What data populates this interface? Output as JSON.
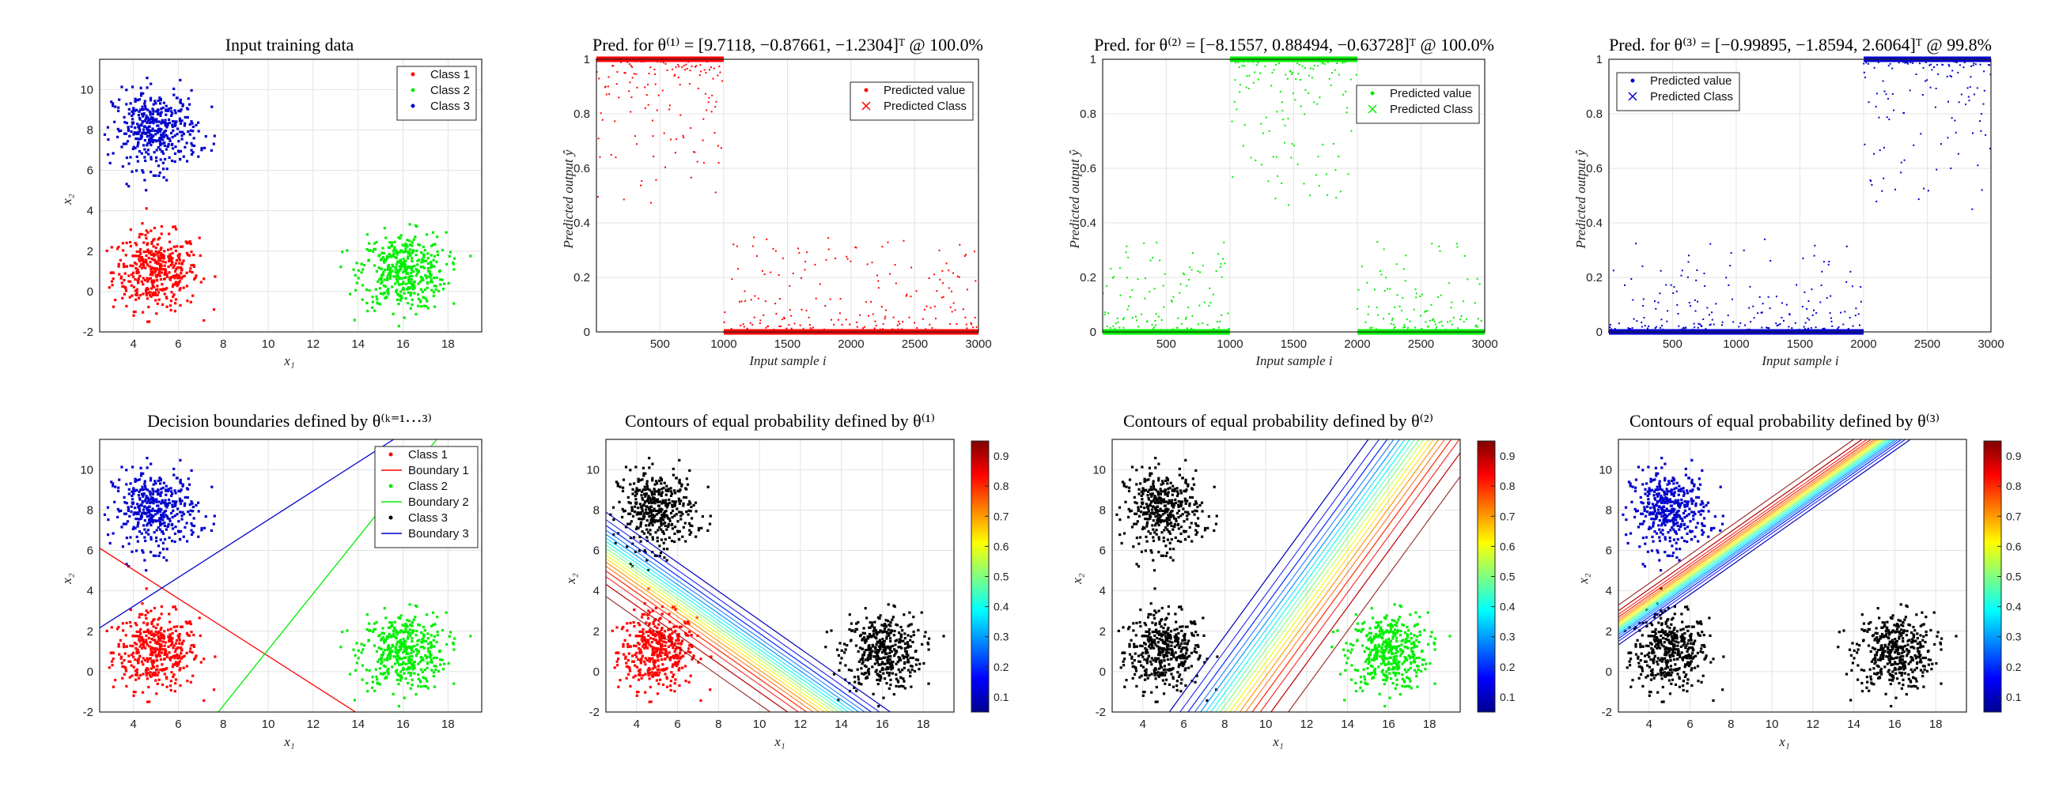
{
  "figure": {
    "panels": [
      {
        "id": "p1",
        "title": "Input training data",
        "xlabel": "x₁",
        "ylabel": "x₂",
        "xticks": [
          "4",
          "6",
          "8",
          "10",
          "12",
          "14",
          "16",
          "18"
        ],
        "yticks": [
          "-2",
          "0",
          "2",
          "4",
          "6",
          "8",
          "10"
        ],
        "legend": [
          "Class 1",
          "Class 2",
          "Class 3"
        ]
      },
      {
        "id": "p2",
        "title": "Pred. for θ⁽¹⁾ = [9.7118, −0.87661, −1.2304]ᵀ @ 100.0%",
        "xlabel": "Input sample i",
        "ylabel": "Predicted output ŷ",
        "xticks": [
          "500",
          "1000",
          "1500",
          "2000",
          "2500",
          "3000"
        ],
        "yticks": [
          "0",
          "0.2",
          "0.4",
          "0.6",
          "0.8",
          "1"
        ],
        "legend": [
          "Predicted value",
          "Predicted Class"
        ]
      },
      {
        "id": "p3",
        "title": "Pred. for θ⁽²⁾ = [−8.1557, 0.88494, −0.63728]ᵀ @ 100.0%",
        "xlabel": "Input sample i",
        "ylabel": "Predicted output ŷ",
        "xticks": [
          "500",
          "1000",
          "1500",
          "2000",
          "2500",
          "3000"
        ],
        "yticks": [
          "0",
          "0.2",
          "0.4",
          "0.6",
          "0.8",
          "1"
        ],
        "legend": [
          "Predicted value",
          "Predicted Class"
        ]
      },
      {
        "id": "p4",
        "title": "Pred. for θ⁽³⁾ = [−0.99895, −1.8594, 2.6064]ᵀ @ 99.8%",
        "xlabel": "Input sample i",
        "ylabel": "Predicted output ŷ",
        "xticks": [
          "500",
          "1000",
          "1500",
          "2000",
          "2500",
          "3000"
        ],
        "yticks": [
          "0",
          "0.2",
          "0.4",
          "0.6",
          "0.8",
          "1"
        ],
        "legend": [
          "Predicted value",
          "Predicted Class"
        ]
      },
      {
        "id": "p5",
        "title": "Decision boundaries defined by θ⁽ᵏ⁼¹···³⁾",
        "xlabel": "x₁",
        "ylabel": "x₂",
        "xticks": [
          "4",
          "6",
          "8",
          "10",
          "12",
          "14",
          "16",
          "18"
        ],
        "yticks": [
          "-2",
          "0",
          "2",
          "4",
          "6",
          "8",
          "10"
        ],
        "legend": [
          "Class 1",
          "Boundary 1",
          "Class 2",
          "Boundary 2",
          "Class 3",
          "Boundary 3"
        ]
      },
      {
        "id": "p6",
        "title": "Contours of equal probability defined by θ⁽¹⁾",
        "xlabel": "x₁",
        "ylabel": "x₂",
        "xticks": [
          "4",
          "6",
          "8",
          "10",
          "12",
          "14",
          "16",
          "18"
        ],
        "yticks": [
          "-2",
          "0",
          "2",
          "4",
          "6",
          "8",
          "10"
        ]
      },
      {
        "id": "p7",
        "title": "Contours of equal probability defined by θ⁽²⁾",
        "xlabel": "x₁",
        "ylabel": "x₂",
        "xticks": [
          "4",
          "6",
          "8",
          "10",
          "12",
          "14",
          "16",
          "18"
        ],
        "yticks": [
          "-2",
          "0",
          "2",
          "4",
          "6",
          "8",
          "10"
        ]
      },
      {
        "id": "p8",
        "title": "Contours of equal probability defined by θ⁽³⁾",
        "xlabel": "x₁",
        "ylabel": "x₂",
        "xticks": [
          "4",
          "6",
          "8",
          "10",
          "12",
          "14",
          "16",
          "18"
        ],
        "yticks": [
          "-2",
          "0",
          "2",
          "4",
          "6",
          "8",
          "10"
        ]
      }
    ],
    "colorbar_ticks": [
      "0.1",
      "0.2",
      "0.3",
      "0.4",
      "0.5",
      "0.6",
      "0.7",
      "0.8",
      "0.9"
    ]
  },
  "colors": {
    "class1": "#ff0000",
    "class2": "#00ee00",
    "class3": "#0000cc",
    "other": "#000000"
  },
  "chart_data": [
    {
      "type": "scatter",
      "title": "Input training data",
      "xlabel": "x₁",
      "ylabel": "x₂",
      "xlim": [
        2.5,
        19.5
      ],
      "ylim": [
        -2,
        11.5
      ],
      "legend_position": "top-right",
      "series": [
        {
          "name": "Class 1",
          "center": [
            5,
            1
          ],
          "spread": 1,
          "count": 1000
        },
        {
          "name": "Class 2",
          "center": [
            16,
            1
          ],
          "spread": 1,
          "count": 1000
        },
        {
          "name": "Class 3",
          "center": [
            5,
            8
          ],
          "spread": 1,
          "count": 1000
        }
      ]
    },
    {
      "type": "scatter",
      "title": "Pred. for θ(1) = [9.7118, −0.87661, −1.2304]T @ 100.0%",
      "xlabel": "Input sample i",
      "ylabel": "Predicted output ŷ",
      "xlim": [
        1,
        3000
      ],
      "ylim": [
        0,
        1
      ],
      "legend_position": "top-right",
      "theta": [
        9.7118,
        -0.87661,
        -1.2304
      ],
      "accuracy": "100.0%",
      "segments": [
        {
          "range": [
            1,
            1000
          ],
          "level": "high"
        },
        {
          "range": [
            1001,
            3000
          ],
          "level": "low"
        }
      ]
    },
    {
      "type": "scatter",
      "title": "Pred. for θ(2) = [−8.1557, 0.88494, −0.63728]T @ 100.0%",
      "xlabel": "Input sample i",
      "ylabel": "Predicted output ŷ",
      "xlim": [
        1,
        3000
      ],
      "ylim": [
        0,
        1
      ],
      "legend_position": "top-right",
      "theta": [
        -8.1557,
        0.88494,
        -0.63728
      ],
      "accuracy": "100.0%",
      "segments": [
        {
          "range": [
            1,
            1000
          ],
          "level": "low"
        },
        {
          "range": [
            1001,
            2000
          ],
          "level": "high"
        },
        {
          "range": [
            2001,
            3000
          ],
          "level": "low"
        }
      ]
    },
    {
      "type": "scatter",
      "title": "Pred. for θ(3) = [−0.99895, −1.8594, 2.6064]T @ 99.8%",
      "xlabel": "Input sample i",
      "ylabel": "Predicted output ŷ",
      "xlim": [
        1,
        3000
      ],
      "ylim": [
        0,
        1
      ],
      "legend_position": "top-left",
      "theta": [
        -0.99895,
        -1.8594,
        2.6064
      ],
      "accuracy": "99.8%",
      "segments": [
        {
          "range": [
            1,
            2000
          ],
          "level": "low"
        },
        {
          "range": [
            2001,
            3000
          ],
          "level": "high"
        }
      ]
    },
    {
      "type": "scatter",
      "title": "Decision boundaries defined by θ(k=1...3)",
      "xlabel": "x₁",
      "ylabel": "x₂",
      "xlim": [
        2.5,
        19.5
      ],
      "ylim": [
        -2,
        11.5
      ],
      "legend_position": "top-right",
      "boundaries": [
        {
          "name": "Boundary 1",
          "theta": [
            9.7118,
            -0.87661,
            -1.2304
          ]
        },
        {
          "name": "Boundary 2",
          "theta": [
            -8.1557,
            0.88494,
            -0.63728
          ]
        },
        {
          "name": "Boundary 3",
          "theta": [
            -0.99895,
            -1.8594,
            2.6064
          ]
        }
      ]
    },
    {
      "type": "contour",
      "title": "Contours of equal probability defined by θ(1)",
      "xlim": [
        2.5,
        19.5
      ],
      "ylim": [
        -2,
        11.5
      ],
      "levels": [
        0.1,
        0.2,
        0.3,
        0.4,
        0.5,
        0.6,
        0.7,
        0.8,
        0.9
      ],
      "highlight_class": "Class 1"
    },
    {
      "type": "contour",
      "title": "Contours of equal probability defined by θ(2)",
      "xlim": [
        2.5,
        19.5
      ],
      "ylim": [
        -2,
        11.5
      ],
      "levels": [
        0.1,
        0.2,
        0.3,
        0.4,
        0.5,
        0.6,
        0.7,
        0.8,
        0.9
      ],
      "highlight_class": "Class 2"
    },
    {
      "type": "contour",
      "title": "Contours of equal probability defined by θ(3)",
      "xlim": [
        2.5,
        19.5
      ],
      "ylim": [
        -2,
        11.5
      ],
      "levels": [
        0.1,
        0.2,
        0.3,
        0.4,
        0.5,
        0.6,
        0.7,
        0.8,
        0.9
      ],
      "highlight_class": "Class 3"
    }
  ]
}
